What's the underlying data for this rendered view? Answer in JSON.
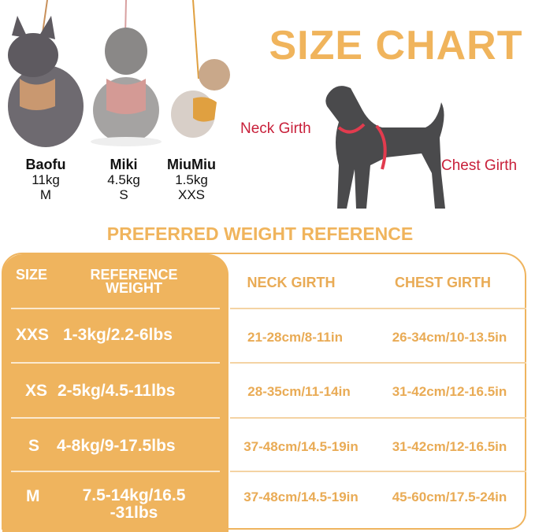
{
  "title": "SIZE CHART",
  "subtitle": "PREFERRED WEIGHT REFERENCE",
  "colors": {
    "accent": "#EFB45E",
    "label_red": "#C8203A"
  },
  "dogs": [
    {
      "name": "Baofu",
      "weight": "11kg",
      "size": "M"
    },
    {
      "name": "Miki",
      "weight": "4.5kg",
      "size": "S"
    },
    {
      "name": "MiuMiu",
      "weight": "1.5kg",
      "size": "XXS"
    }
  ],
  "diagram": {
    "neck_label": "Neck Girth",
    "chest_label": "Chest Girth"
  },
  "table": {
    "headers": {
      "size": "SIZE",
      "weight_line1": "REFERENCE",
      "weight_line2": "WEIGHT",
      "neck": "NECK GIRTH",
      "chest": "CHEST GIRTH"
    },
    "rows": [
      {
        "size": "XXS",
        "weight": "1-3kg/2.2-6lbs",
        "neck": "21-28cm/8-11in",
        "chest": "26-34cm/10-13.5in"
      },
      {
        "size": "XS",
        "weight": "2-5kg/4.5-11lbs",
        "neck": "28-35cm/11-14in",
        "chest": "31-42cm/12-16.5in"
      },
      {
        "size": "S",
        "weight": "4-8kg/9-17.5lbs",
        "neck": "37-48cm/14.5-19in",
        "chest": "31-42cm/12-16.5in"
      },
      {
        "size": "M",
        "weight_line1": "7.5-14kg/16.5",
        "weight_line2": "-31lbs",
        "neck": "37-48cm/14.5-19in",
        "chest": "45-60cm/17.5-24in"
      }
    ]
  }
}
